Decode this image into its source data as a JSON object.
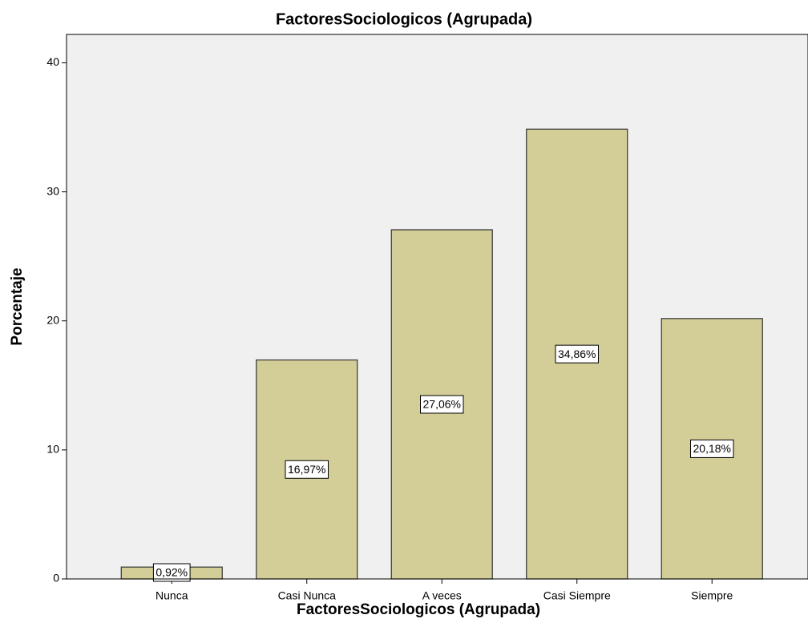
{
  "chart_data": {
    "type": "bar",
    "title": "FactoresSociologicos (Agrupada)",
    "x_label": "FactoresSociologicos (Agrupada)",
    "y_label": "Porcentaje",
    "categories": [
      "Nunca",
      "Casi Nunca",
      "A veces",
      "Casi Siempre",
      "Siempre"
    ],
    "values": [
      0.92,
      16.97,
      27.06,
      34.86,
      20.18
    ],
    "value_labels": [
      "0,92%",
      "16,97%",
      "27,06%",
      "34,86%",
      "20,18%"
    ],
    "color": "#d3ce97",
    "ylim": [
      0,
      42.2
    ],
    "yticks": [
      0,
      10,
      20,
      30,
      40
    ],
    "grid": false
  }
}
